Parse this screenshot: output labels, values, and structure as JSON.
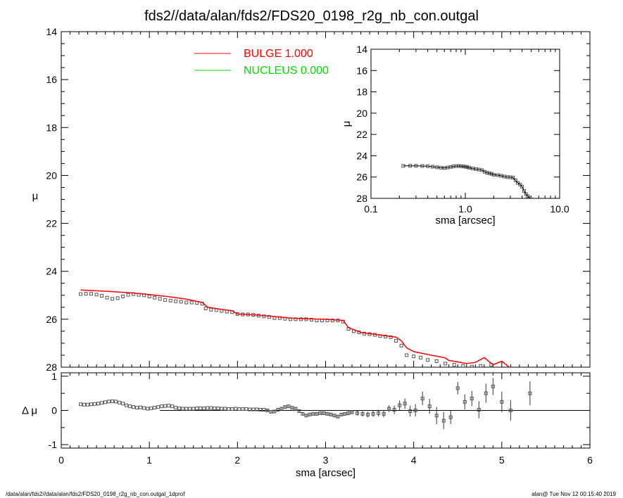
{
  "title": "fds2//data/alan/fds2/FDS20_0198_r2g_nb_con.outgal",
  "footer": {
    "left": "/data/alan/fds2//data/alan/fds2/FDS20_0198_r2g_nb_con.outgal_1dprof",
    "right": "alan@  Tue Nov 12 00:15:40 2019"
  },
  "colors": {
    "bulge": "#ff0000",
    "nucleus": "#00dd00",
    "data": "#555555"
  },
  "chart_data": [
    {
      "type": "scatter",
      "panel": "main",
      "xlabel": "",
      "ylabel": "μ",
      "xlim": [
        0,
        6
      ],
      "ylim": [
        28,
        14
      ],
      "y_inverted": true,
      "yticks": [
        "14",
        "16",
        "18",
        "20",
        "22",
        "24",
        "26",
        "28"
      ],
      "legend": {
        "placement": "top-left",
        "entries": [
          {
            "label": "BULGE",
            "value": "1.000",
            "color": "#ff0000"
          },
          {
            "label": "NUCLEUS",
            "value": "0.000",
            "color": "#00dd00"
          }
        ]
      },
      "series": [
        {
          "name": "",
          "kind": "points",
          "x": [
            0.22,
            0.28,
            0.34,
            0.4,
            0.46,
            0.52,
            0.58,
            0.64,
            0.7,
            0.76,
            0.82,
            0.88,
            0.94,
            1.0,
            1.06,
            1.12,
            1.18,
            1.24,
            1.3,
            1.36,
            1.42,
            1.48,
            1.54,
            1.6,
            1.64,
            1.7,
            1.76,
            1.82,
            1.88,
            1.94,
            2.0,
            2.06,
            2.12,
            2.18,
            2.24,
            2.3,
            2.36,
            2.42,
            2.48,
            2.54,
            2.6,
            2.66,
            2.72,
            2.78,
            2.84,
            2.9,
            2.96,
            3.02,
            3.08,
            3.14,
            3.2,
            3.26,
            3.32,
            3.38,
            3.44,
            3.5,
            3.56,
            3.62,
            3.68,
            3.74,
            3.8,
            3.86,
            3.92,
            4.0,
            4.08,
            4.16,
            4.26,
            4.36,
            4.46,
            4.56,
            4.66,
            4.76,
            4.88,
            5.0
          ],
          "y": [
            24.95,
            24.94,
            24.94,
            24.97,
            25.02,
            25.1,
            25.15,
            25.12,
            25.05,
            24.98,
            24.95,
            24.98,
            25.0,
            25.05,
            25.1,
            25.15,
            25.2,
            25.22,
            25.25,
            25.27,
            25.3,
            25.3,
            25.32,
            25.35,
            25.55,
            25.6,
            25.62,
            25.65,
            25.68,
            25.7,
            25.78,
            25.8,
            25.8,
            25.82,
            25.85,
            25.88,
            25.9,
            25.95,
            25.95,
            25.98,
            26.0,
            26.0,
            26.0,
            26.0,
            26.02,
            26.05,
            26.05,
            26.05,
            26.05,
            26.05,
            26.1,
            26.4,
            26.5,
            26.55,
            26.6,
            26.62,
            26.65,
            26.7,
            26.72,
            26.75,
            26.9,
            27.1,
            27.5,
            27.55,
            27.6,
            27.7,
            27.75,
            27.85,
            27.9,
            27.95,
            27.98,
            27.95,
            27.9,
            28.1
          ]
        },
        {
          "name": "BULGE",
          "kind": "line",
          "color": "#ff0000",
          "x": [
            0.22,
            0.5,
            0.8,
            1.0,
            1.2,
            1.4,
            1.6,
            1.66,
            1.8,
            1.94,
            2.0,
            2.2,
            2.4,
            2.6,
            2.8,
            3.0,
            3.2,
            3.26,
            3.4,
            3.6,
            3.8,
            3.86,
            3.92,
            4.0,
            4.2,
            4.35,
            4.4,
            4.5,
            4.6,
            4.7,
            4.8,
            4.9,
            5.0,
            5.1
          ],
          "y": [
            24.78,
            24.83,
            24.9,
            24.97,
            25.05,
            25.15,
            25.3,
            25.5,
            25.58,
            25.65,
            25.78,
            25.82,
            25.88,
            25.95,
            25.98,
            26.0,
            26.05,
            26.35,
            26.55,
            26.65,
            26.75,
            26.9,
            27.2,
            27.35,
            27.5,
            27.6,
            27.72,
            27.78,
            27.85,
            27.8,
            27.6,
            27.9,
            27.75,
            28.05
          ]
        }
      ]
    },
    {
      "type": "scatter",
      "panel": "inset",
      "xlabel": "sma [arcsec]",
      "ylabel": "μ",
      "x_scale": "log",
      "xlim": [
        0.1,
        10.0
      ],
      "ylim": [
        28,
        14
      ],
      "y_inverted": true,
      "xticks": [
        "0.1",
        "1.0",
        "10.0"
      ],
      "yticks": [
        "14",
        "16",
        "18",
        "20",
        "22",
        "24",
        "26",
        "28"
      ],
      "series": [
        {
          "name": "",
          "kind": "points",
          "x": [
            0.22,
            0.26,
            0.3,
            0.35,
            0.4,
            0.45,
            0.5,
            0.55,
            0.6,
            0.65,
            0.7,
            0.75,
            0.8,
            0.85,
            0.9,
            0.95,
            1.0,
            1.05,
            1.1,
            1.2,
            1.3,
            1.4,
            1.5,
            1.6,
            1.7,
            1.8,
            1.9,
            2.0,
            2.2,
            2.4,
            2.6,
            2.8,
            3.0,
            3.2,
            3.4,
            3.6,
            3.8,
            4.0,
            4.2,
            4.4,
            4.6,
            4.8,
            5.0
          ],
          "y": [
            24.95,
            24.94,
            24.94,
            24.96,
            24.98,
            25.03,
            25.08,
            25.12,
            25.15,
            25.1,
            25.05,
            25.0,
            24.97,
            24.96,
            24.98,
            25.0,
            25.03,
            25.07,
            25.12,
            25.2,
            25.25,
            25.3,
            25.35,
            25.5,
            25.6,
            25.65,
            25.7,
            25.78,
            25.82,
            25.88,
            25.95,
            26.0,
            26.02,
            26.05,
            26.3,
            26.55,
            26.7,
            26.9,
            27.3,
            27.6,
            27.8,
            27.95,
            28.1
          ]
        }
      ]
    },
    {
      "type": "scatter",
      "panel": "residual",
      "xlabel": "sma [arcsec]",
      "ylabel": "Δ μ",
      "xlim": [
        0,
        6
      ],
      "ylim": [
        -1.1,
        1.1
      ],
      "xticks": [
        "0",
        "1",
        "2",
        "3",
        "4",
        "5",
        "6"
      ],
      "yticks": [
        "-1",
        "0",
        "1"
      ],
      "series": [
        {
          "name": "",
          "kind": "points_with_errors",
          "x": [
            0.22,
            0.26,
            0.3,
            0.34,
            0.38,
            0.42,
            0.46,
            0.5,
            0.54,
            0.58,
            0.62,
            0.66,
            0.7,
            0.74,
            0.78,
            0.82,
            0.86,
            0.9,
            0.94,
            0.98,
            1.02,
            1.06,
            1.1,
            1.14,
            1.18,
            1.22,
            1.26,
            1.3,
            1.34,
            1.38,
            1.42,
            1.46,
            1.5,
            1.54,
            1.58,
            1.62,
            1.66,
            1.7,
            1.74,
            1.78,
            1.82,
            1.86,
            1.9,
            1.94,
            1.98,
            2.02,
            2.06,
            2.1,
            2.14,
            2.18,
            2.22,
            2.26,
            2.3,
            2.34,
            2.38,
            2.42,
            2.46,
            2.5,
            2.54,
            2.58,
            2.62,
            2.66,
            2.7,
            2.74,
            2.78,
            2.82,
            2.86,
            2.9,
            2.94,
            2.98,
            3.02,
            3.06,
            3.1,
            3.14,
            3.18,
            3.22,
            3.26,
            3.3,
            3.36,
            3.42,
            3.48,
            3.54,
            3.6,
            3.66,
            3.72,
            3.78,
            3.84,
            3.9,
            3.96,
            4.02,
            4.1,
            4.18,
            4.26,
            4.34,
            4.42,
            4.5,
            4.58,
            4.66,
            4.74,
            4.82,
            4.9,
            5.0,
            5.1,
            5.32
          ],
          "y": [
            0.18,
            0.17,
            0.17,
            0.18,
            0.19,
            0.2,
            0.22,
            0.24,
            0.26,
            0.27,
            0.26,
            0.23,
            0.2,
            0.15,
            0.12,
            0.1,
            0.08,
            0.09,
            0.07,
            0.05,
            0.06,
            0.08,
            0.1,
            0.12,
            0.13,
            0.14,
            0.12,
            0.08,
            0.06,
            0.05,
            0.05,
            0.05,
            0.05,
            0.06,
            0.06,
            0.06,
            0.07,
            0.07,
            0.06,
            0.06,
            0.05,
            0.05,
            0.04,
            0.04,
            0.05,
            0.04,
            0.04,
            0.04,
            0.03,
            0.03,
            0.03,
            0.02,
            0.02,
            0.0,
            -0.04,
            -0.03,
            0.02,
            0.05,
            0.1,
            0.12,
            0.08,
            0.05,
            -0.02,
            -0.1,
            -0.15,
            -0.12,
            -0.1,
            -0.1,
            -0.08,
            -0.08,
            -0.1,
            -0.12,
            -0.15,
            -0.18,
            -0.12,
            -0.1,
            -0.08,
            -0.05,
            -0.08,
            -0.1,
            -0.12,
            -0.1,
            -0.08,
            -0.1,
            0.05,
            0.02,
            0.15,
            0.2,
            -0.02,
            0.0,
            0.35,
            0.12,
            -0.15,
            -0.3,
            -0.2,
            0.65,
            0.25,
            0.35,
            0.02,
            0.5,
            0.7,
            0.25,
            0.0,
            0.5
          ],
          "err": [
            0.01,
            0.01,
            0.01,
            0.01,
            0.01,
            0.01,
            0.01,
            0.01,
            0.01,
            0.01,
            0.01,
            0.01,
            0.01,
            0.01,
            0.01,
            0.01,
            0.01,
            0.01,
            0.01,
            0.01,
            0.01,
            0.01,
            0.01,
            0.01,
            0.01,
            0.01,
            0.01,
            0.01,
            0.01,
            0.01,
            0.01,
            0.01,
            0.01,
            0.01,
            0.01,
            0.01,
            0.01,
            0.01,
            0.01,
            0.01,
            0.01,
            0.01,
            0.01,
            0.01,
            0.02,
            0.02,
            0.02,
            0.02,
            0.02,
            0.02,
            0.02,
            0.02,
            0.02,
            0.03,
            0.03,
            0.03,
            0.03,
            0.03,
            0.03,
            0.03,
            0.03,
            0.03,
            0.04,
            0.04,
            0.04,
            0.04,
            0.04,
            0.04,
            0.04,
            0.04,
            0.05,
            0.05,
            0.05,
            0.05,
            0.05,
            0.05,
            0.06,
            0.06,
            0.07,
            0.08,
            0.08,
            0.09,
            0.1,
            0.1,
            0.1,
            0.12,
            0.14,
            0.15,
            0.16,
            0.18,
            0.2,
            0.22,
            0.25,
            0.25,
            0.2,
            0.18,
            0.22,
            0.22,
            0.25,
            0.28,
            0.25,
            0.3,
            0.3,
            0.35
          ]
        }
      ]
    }
  ]
}
